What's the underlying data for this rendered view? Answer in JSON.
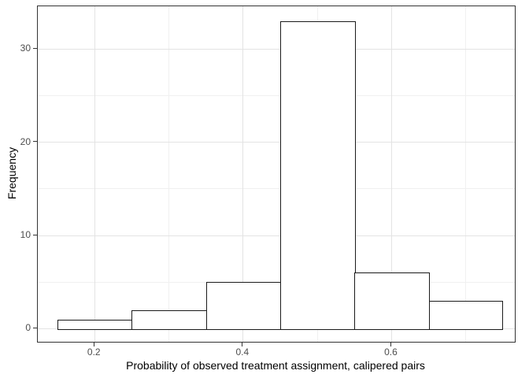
{
  "figure": {
    "background": "#ffffff",
    "panel_border_color": "#333333",
    "grid_major_color": "#e3e3e3",
    "grid_minor_color": "#f0f0f0",
    "bar_fill": "#ffffff",
    "bar_stroke": "#1a1a1a",
    "tick_color": "#333333",
    "tick_label_color": "#4d4d4d",
    "axis_title_color": "#000000"
  },
  "chart_data": {
    "type": "bar",
    "subtype": "histogram",
    "title": "",
    "xlabel": "Probability of observed treatment assignment, calipered pairs",
    "ylabel": "Frequency",
    "bin_edges": [
      0.15,
      0.25,
      0.35,
      0.45,
      0.55,
      0.65,
      0.75
    ],
    "frequencies": [
      1,
      2,
      5,
      33,
      6,
      3
    ],
    "x_ticks": [
      0.2,
      0.4,
      0.6
    ],
    "x_tick_labels": [
      "0.2",
      "0.4",
      "0.6"
    ],
    "y_ticks": [
      0,
      10,
      20,
      30
    ],
    "y_tick_labels": [
      "0",
      "10",
      "20",
      "30"
    ],
    "x_minor_gridlines": [
      0.3,
      0.5,
      0.7
    ],
    "y_minor_gridlines": [
      5,
      15,
      25
    ],
    "xlim": [
      0.1234,
      0.766
    ],
    "ylim": [
      -1.4,
      34.6
    ],
    "grid": true,
    "legend": false
  }
}
